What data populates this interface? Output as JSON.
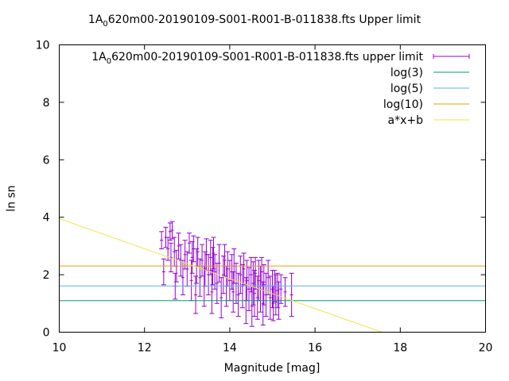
{
  "chart_data": {
    "type": "scatter",
    "title": "1A_0620m00-20190109-S001-R001-B-011838.fts Upper limit",
    "title_prefix": "1A",
    "title_sub": "0",
    "title_rest": "620m00-20190109-S001-R001-B-011838.fts Upper limit",
    "xlabel": "Magnitude [mag]",
    "ylabel": "ln sn",
    "xlim": [
      10,
      20
    ],
    "ylim": [
      0,
      10
    ],
    "xticks": [
      10,
      12,
      14,
      16,
      18,
      20
    ],
    "yticks": [
      0,
      2,
      4,
      6,
      8,
      10
    ],
    "grid": false,
    "legend_position": "top-right",
    "series": [
      {
        "name": "1A_0620m00-20190109-S001-R001-B-011838.fts upper limit",
        "name_prefix": "1A",
        "name_sub": "0",
        "name_rest": "620m00-20190109-S001-R001-B-011838.fts upper limit",
        "kind": "errorbars",
        "color": "#9400d3",
        "points": [
          [
            12.4,
            3.2,
            0.3
          ],
          [
            12.45,
            2.1,
            0.45
          ],
          [
            12.5,
            3.3,
            0.35
          ],
          [
            12.55,
            2.9,
            0.4
          ],
          [
            12.6,
            3.5,
            0.3
          ],
          [
            12.62,
            2.6,
            0.5
          ],
          [
            12.65,
            3.55,
            0.3
          ],
          [
            12.7,
            2.8,
            0.5
          ],
          [
            12.72,
            1.6,
            0.45
          ],
          [
            12.75,
            2.3,
            0.55
          ],
          [
            12.8,
            3.0,
            0.45
          ],
          [
            12.85,
            2.5,
            0.55
          ],
          [
            12.9,
            1.9,
            0.6
          ],
          [
            12.95,
            2.7,
            0.5
          ],
          [
            13.0,
            2.2,
            0.6
          ],
          [
            13.05,
            3.1,
            0.35
          ],
          [
            13.1,
            1.8,
            0.7
          ],
          [
            13.12,
            2.6,
            0.55
          ],
          [
            13.15,
            2.9,
            0.45
          ],
          [
            13.2,
            1.3,
            0.65
          ],
          [
            13.22,
            2.3,
            0.6
          ],
          [
            13.25,
            2.8,
            0.5
          ],
          [
            13.3,
            1.9,
            0.65
          ],
          [
            13.35,
            2.5,
            0.55
          ],
          [
            13.4,
            1.6,
            0.7
          ],
          [
            13.42,
            2.2,
            0.6
          ],
          [
            13.45,
            2.7,
            0.55
          ],
          [
            13.5,
            2.0,
            0.7
          ],
          [
            13.55,
            2.6,
            0.6
          ],
          [
            13.58,
            1.4,
            0.75
          ],
          [
            13.6,
            2.3,
            0.65
          ],
          [
            13.62,
            2.75,
            0.55
          ],
          [
            13.65,
            2.1,
            0.6
          ],
          [
            13.7,
            1.7,
            0.7
          ],
          [
            13.75,
            2.4,
            0.65
          ],
          [
            13.8,
            1.2,
            0.7
          ],
          [
            13.85,
            2.0,
            0.65
          ],
          [
            13.88,
            2.5,
            0.55
          ],
          [
            13.92,
            1.6,
            0.7
          ],
          [
            13.95,
            2.2,
            0.6
          ],
          [
            14.0,
            1.8,
            0.7
          ],
          [
            14.05,
            2.1,
            0.6
          ],
          [
            14.08,
            1.4,
            0.7
          ],
          [
            14.1,
            2.3,
            0.6
          ],
          [
            14.15,
            1.7,
            0.7
          ],
          [
            14.2,
            1.3,
            0.75
          ],
          [
            14.25,
            2.0,
            0.65
          ],
          [
            14.3,
            1.6,
            0.75
          ],
          [
            14.33,
            2.2,
            0.55
          ],
          [
            14.38,
            1.1,
            0.8
          ],
          [
            14.4,
            1.8,
            0.7
          ],
          [
            14.45,
            1.5,
            0.75
          ],
          [
            14.5,
            2.0,
            0.6
          ],
          [
            14.52,
            0.9,
            0.7
          ],
          [
            14.55,
            1.7,
            0.75
          ],
          [
            14.58,
            1.35,
            0.8
          ],
          [
            14.6,
            2.05,
            0.55
          ],
          [
            14.65,
            1.2,
            0.75
          ],
          [
            14.68,
            1.8,
            0.7
          ],
          [
            14.72,
            1.5,
            0.8
          ],
          [
            14.75,
            2.1,
            0.5
          ],
          [
            14.78,
            1.0,
            0.75
          ],
          [
            14.8,
            1.65,
            0.7
          ],
          [
            14.85,
            1.3,
            0.75
          ],
          [
            14.9,
            1.9,
            0.6
          ],
          [
            14.95,
            1.2,
            0.75
          ],
          [
            15.0,
            1.5,
            0.65
          ],
          [
            15.02,
            1.0,
            0.6
          ],
          [
            15.05,
            1.6,
            0.55
          ],
          [
            15.08,
            1.3,
            0.7
          ],
          [
            15.12,
            1.45,
            0.6
          ],
          [
            15.15,
            1.1,
            0.65
          ],
          [
            15.2,
            1.5,
            0.5
          ],
          [
            15.3,
            1.4,
            0.5
          ],
          [
            15.45,
            1.3,
            0.75
          ]
        ]
      },
      {
        "name": "log(3)",
        "kind": "hline",
        "value": 1.0986,
        "color": "#009e73"
      },
      {
        "name": "log(5)",
        "kind": "hline",
        "value": 1.6094,
        "color": "#56b4e9"
      },
      {
        "name": "log(10)",
        "kind": "hline",
        "value": 2.3026,
        "color": "#e69f00"
      },
      {
        "name": "a*x+b",
        "kind": "line",
        "x": [
          10,
          17.57
        ],
        "y": [
          3.95,
          0
        ],
        "color": "#f0e442"
      }
    ]
  }
}
